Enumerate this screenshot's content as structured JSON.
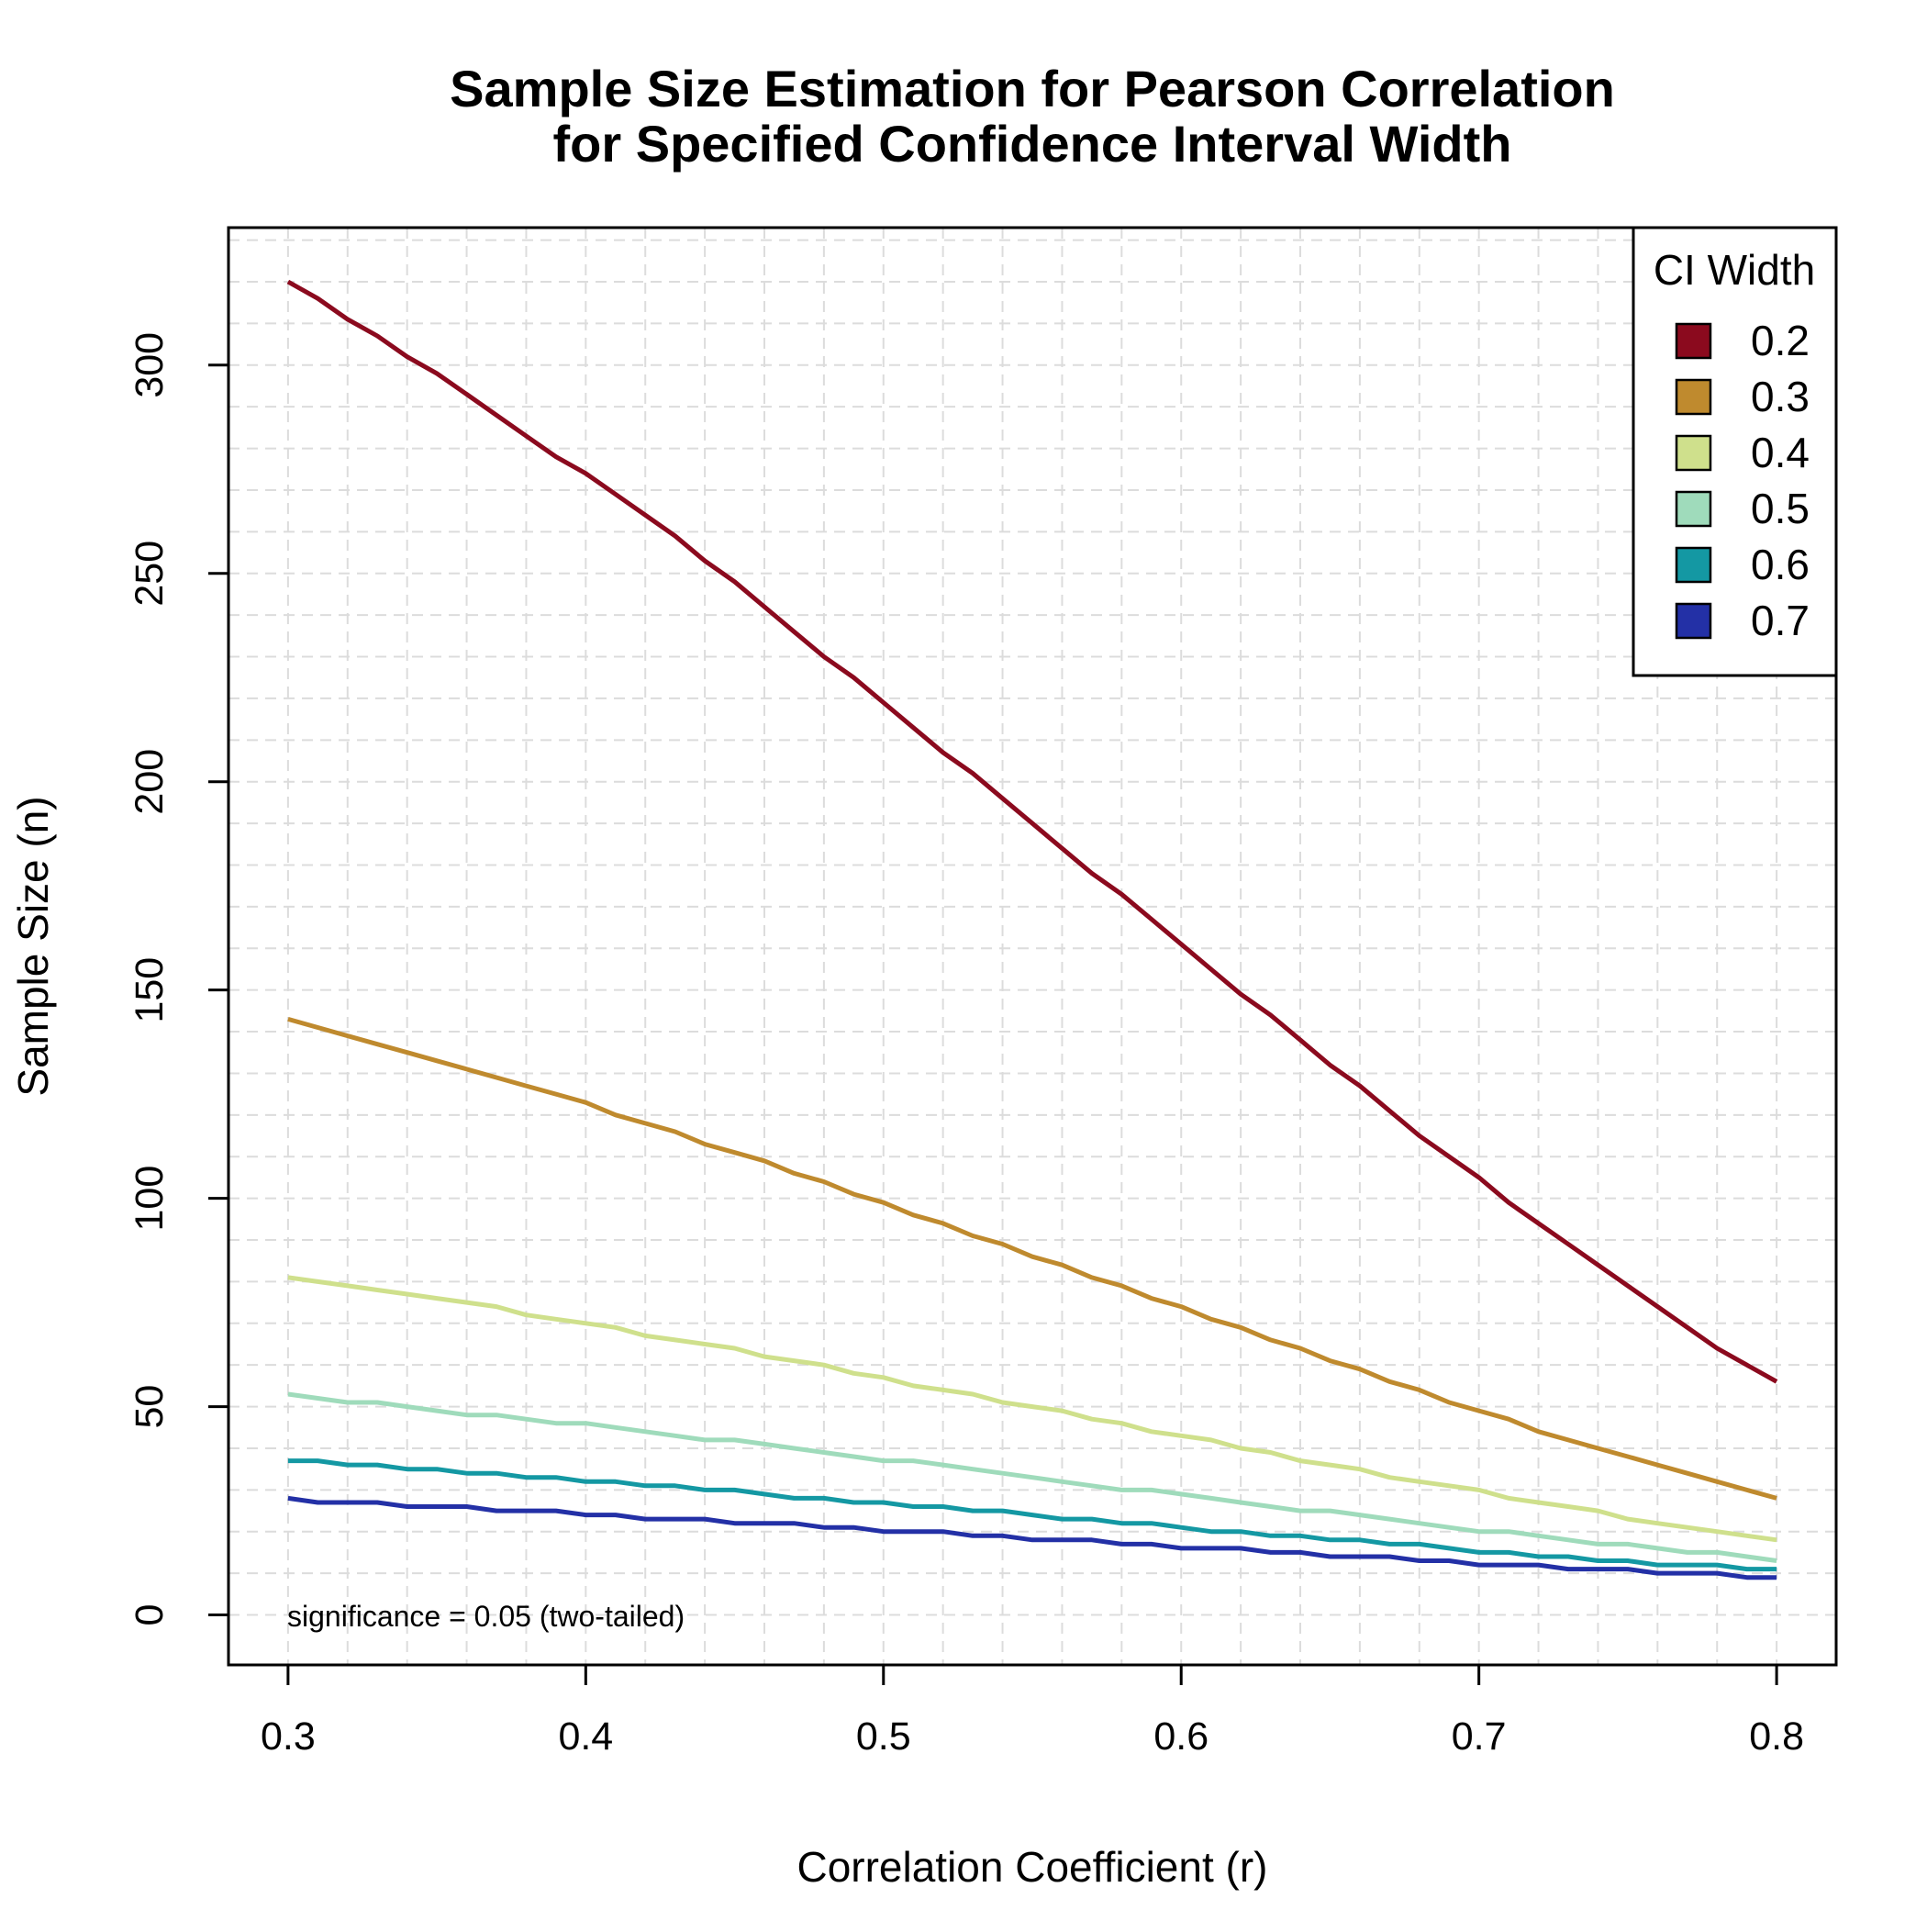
{
  "chart_data": {
    "type": "line",
    "title": [
      "Sample Size Estimation for Pearson Correlation",
      "for Specified Confidence Interval Width"
    ],
    "xlabel": "Correlation Coefficient (r)",
    "ylabel": "Sample Size (n)",
    "xlim": [
      0.28,
      0.82
    ],
    "ylim": [
      -12,
      333
    ],
    "x_ticks": [
      0.3,
      0.4,
      0.5,
      0.6,
      0.7,
      0.8
    ],
    "x_tick_labels": [
      "0.3",
      "0.4",
      "0.5",
      "0.6",
      "0.7",
      "0.8"
    ],
    "y_ticks": [
      0,
      50,
      100,
      150,
      200,
      250,
      300
    ],
    "y_tick_labels": [
      "0",
      "50",
      "100",
      "150",
      "200",
      "250",
      "300"
    ],
    "grid": true,
    "legend": {
      "title": "CI Width",
      "position": "top-right"
    },
    "annotation": "significance = 0.05 (two-tailed)",
    "x": [
      0.3,
      0.31,
      0.32,
      0.33,
      0.34,
      0.35,
      0.36,
      0.37,
      0.38,
      0.39,
      0.4,
      0.41,
      0.42,
      0.43,
      0.44,
      0.45,
      0.46,
      0.47,
      0.48,
      0.49,
      0.5,
      0.51,
      0.52,
      0.53,
      0.54,
      0.55,
      0.56,
      0.57,
      0.58,
      0.59,
      0.6,
      0.61,
      0.62,
      0.63,
      0.64,
      0.65,
      0.66,
      0.67,
      0.68,
      0.69,
      0.7,
      0.71,
      0.72,
      0.73,
      0.74,
      0.75,
      0.76,
      0.77,
      0.78,
      0.79,
      0.8
    ],
    "series": [
      {
        "name": "0.2",
        "color": "#8b0a1e",
        "values": [
          320,
          316,
          311,
          307,
          302,
          298,
          293,
          288,
          283,
          278,
          274,
          269,
          264,
          259,
          253,
          248,
          242,
          236,
          230,
          225,
          219,
          213,
          207,
          202,
          196,
          190,
          184,
          178,
          173,
          167,
          161,
          155,
          149,
          144,
          138,
          132,
          127,
          121,
          115,
          110,
          105,
          99,
          94,
          89,
          84,
          79,
          74,
          69,
          64,
          60,
          56
        ]
      },
      {
        "name": "0.3",
        "color": "#bf8a2e",
        "values": [
          143,
          141,
          139,
          137,
          135,
          133,
          131,
          129,
          127,
          125,
          123,
          120,
          118,
          116,
          113,
          111,
          109,
          106,
          104,
          101,
          99,
          96,
          94,
          91,
          89,
          86,
          84,
          81,
          79,
          76,
          74,
          71,
          69,
          66,
          64,
          61,
          59,
          56,
          54,
          51,
          49,
          47,
          44,
          42,
          40,
          38,
          36,
          34,
          32,
          30,
          28
        ]
      },
      {
        "name": "0.4",
        "color": "#cfe08c",
        "values": [
          81,
          80,
          79,
          78,
          77,
          76,
          75,
          74,
          72,
          71,
          70,
          69,
          67,
          66,
          65,
          64,
          62,
          61,
          60,
          58,
          57,
          55,
          54,
          53,
          51,
          50,
          49,
          47,
          46,
          44,
          43,
          42,
          40,
          39,
          37,
          36,
          35,
          33,
          32,
          31,
          30,
          28,
          27,
          26,
          25,
          23,
          22,
          21,
          20,
          19,
          18
        ]
      },
      {
        "name": "0.5",
        "color": "#9fdbbb",
        "values": [
          53,
          52,
          51,
          51,
          50,
          49,
          48,
          48,
          47,
          46,
          46,
          45,
          44,
          43,
          42,
          42,
          41,
          40,
          39,
          38,
          37,
          37,
          36,
          35,
          34,
          33,
          32,
          31,
          30,
          30,
          29,
          28,
          27,
          26,
          25,
          25,
          24,
          23,
          22,
          21,
          20,
          20,
          19,
          18,
          17,
          17,
          16,
          15,
          15,
          14,
          13
        ]
      },
      {
        "name": "0.6",
        "color": "#1498a3",
        "values": [
          37,
          37,
          36,
          36,
          35,
          35,
          34,
          34,
          33,
          33,
          32,
          32,
          31,
          31,
          30,
          30,
          29,
          28,
          28,
          27,
          27,
          26,
          26,
          25,
          25,
          24,
          23,
          23,
          22,
          22,
          21,
          20,
          20,
          19,
          19,
          18,
          18,
          17,
          17,
          16,
          15,
          15,
          14,
          14,
          13,
          13,
          12,
          12,
          12,
          11,
          11
        ]
      },
      {
        "name": "0.7",
        "color": "#2330a6",
        "values": [
          28,
          27,
          27,
          27,
          26,
          26,
          26,
          25,
          25,
          25,
          24,
          24,
          23,
          23,
          23,
          22,
          22,
          22,
          21,
          21,
          20,
          20,
          20,
          19,
          19,
          18,
          18,
          18,
          17,
          17,
          16,
          16,
          16,
          15,
          15,
          14,
          14,
          14,
          13,
          13,
          12,
          12,
          12,
          11,
          11,
          11,
          10,
          10,
          10,
          9,
          9
        ]
      }
    ]
  }
}
